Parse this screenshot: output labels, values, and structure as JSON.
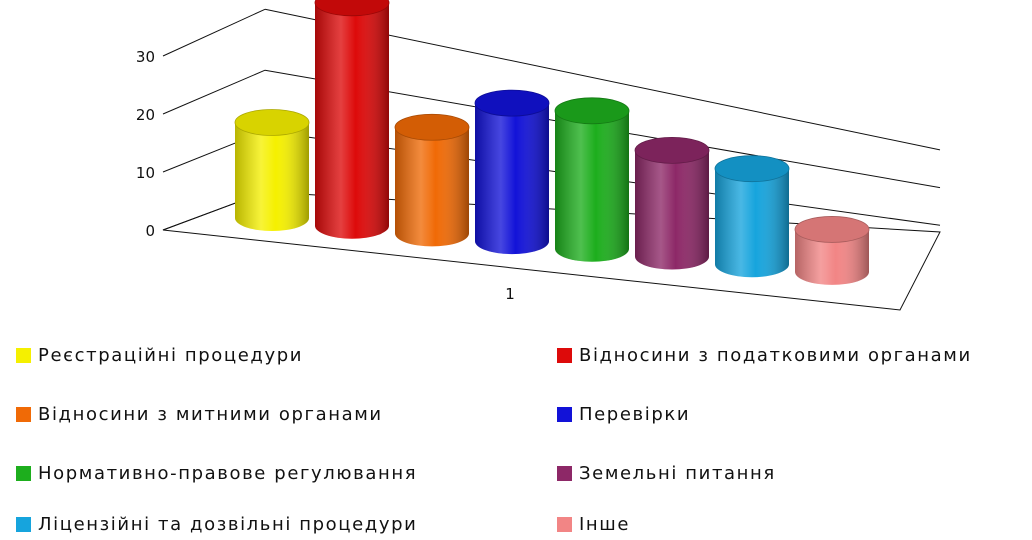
{
  "chart_data": {
    "type": "bar",
    "style": "3d-cylinder",
    "categories": [
      "1"
    ],
    "series": [
      {
        "name": "Реєстраційні процедури",
        "values": [
          9
        ],
        "color": "#f5f000"
      },
      {
        "name": "Відносини з податковими органами",
        "values": [
          21
        ],
        "color": "#dd0a0a"
      },
      {
        "name": "Відносини з митними органами",
        "values": [
          10
        ],
        "color": "#f06a06"
      },
      {
        "name": "Перевірки",
        "values": [
          13
        ],
        "color": "#1212d8"
      },
      {
        "name": "Нормативно-правове регулювання",
        "values": [
          13
        ],
        "color": "#1dae1d"
      },
      {
        "name": "Земельні питання",
        "values": [
          10
        ],
        "color": "#8d2867"
      },
      {
        "name": "Ліцензійні та дозвільні процедури",
        "values": [
          9
        ],
        "color": "#16a4dd"
      },
      {
        "name": "Інше",
        "values": [
          4
        ],
        "color": "#f28585"
      }
    ],
    "y_ticks": [
      "0",
      "10",
      "20",
      "30"
    ],
    "ylim": [
      0,
      30
    ],
    "grid": true,
    "legend_position": "bottom",
    "title": "",
    "xlabel": "",
    "ylabel": ""
  }
}
